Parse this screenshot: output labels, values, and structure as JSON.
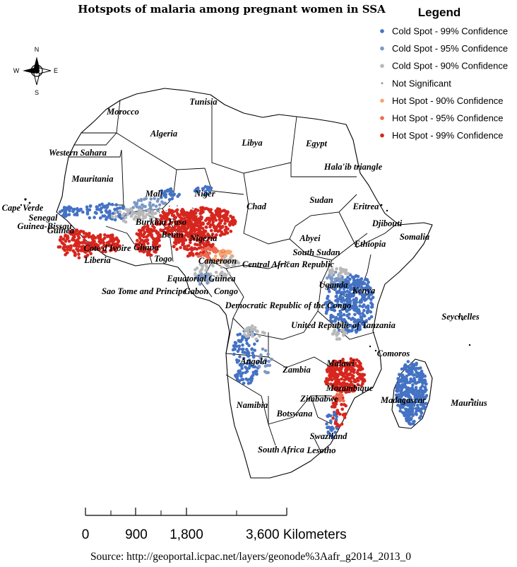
{
  "title": "Hotspots of malaria among pregnant women in SSA",
  "legend": {
    "title": "Legend",
    "items": [
      {
        "label": "Cold Spot - 99% Confidence",
        "color": "#4472c4",
        "size": "large"
      },
      {
        "label": "Cold Spot - 95% Confidence",
        "color": "#7b98c6",
        "size": "large"
      },
      {
        "label": "Cold Spot - 90% Confidence",
        "color": "#b8b8b8",
        "size": "large"
      },
      {
        "label": "Not Significant",
        "color": "#999999",
        "size": "small"
      },
      {
        "label": "Hot Spot - 90% Confidence",
        "color": "#f4a66f",
        "size": "large"
      },
      {
        "label": "Hot Spot - 95% Confidence",
        "color": "#ee6a50",
        "size": "large"
      },
      {
        "label": "Hot Spot - 99% Confidence",
        "color": "#d6261e",
        "size": "large"
      }
    ]
  },
  "compass": {
    "n": "N",
    "s": "S",
    "e": "E",
    "w": "W"
  },
  "country_labels": [
    "Morocco",
    "Tunisia",
    "Algeria",
    "Libya",
    "Egypt",
    "Western Sahara",
    "Mauritania",
    "Hala'ib triangle",
    "Mali",
    "Niger",
    "Chad",
    "Sudan",
    "Eritrea",
    "Cape Verde",
    "Senegal",
    "Guinea-Bissau",
    "Burkina Faso",
    "Guinea",
    "Benin",
    "Nigeria",
    "Djibouti",
    "Somalia",
    "Abyei",
    "Ethiopia",
    "Cote d'Ivoire",
    "Ghana",
    "Liberia",
    "Togo",
    "South Sudan",
    "Cameroon",
    "Central African Republic",
    "Equatorial Guinea",
    "Sao Tome and Principe",
    "Gabon",
    "Congo",
    "Uganda",
    "Kenya",
    "Democratic Republic of the Congo",
    "United Republic of Tanzania",
    "Seychelles",
    "Comoros",
    "Angola",
    "Zambia",
    "Malawi",
    "Mozambique",
    "Madagascar",
    "Mauritius",
    "Zimbabwe",
    "Namibia",
    "Botswana",
    "Swaziland",
    "South Africa",
    "Lesotho"
  ],
  "scale_bar": {
    "labels": [
      "0",
      "900",
      "1,800",
      "3,600 Kilometers"
    ]
  },
  "source": "Source: http://geoportal.icpac.net/layers/geonode%3Aafr_g2014_2013_0"
}
